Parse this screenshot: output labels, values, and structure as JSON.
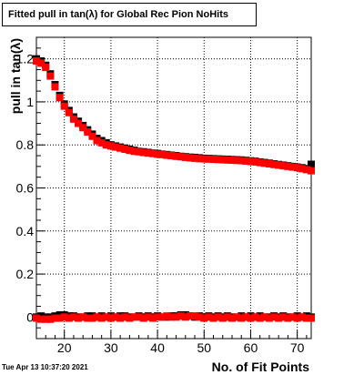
{
  "timestamp": "Tue Apr 13 10:37:20 2021",
  "chart_data": {
    "type": "scatter",
    "title": "Fitted pull in tan(λ) for Global Rec Pion NoHits",
    "xlabel": "No. of Fit Points",
    "ylabel": "pull in tan(λ)",
    "xlim": [
      14,
      73
    ],
    "ylim": [
      -0.1,
      1.3
    ],
    "xticks": [
      20,
      30,
      40,
      50,
      60,
      70
    ],
    "yticks": [
      0,
      0.2,
      0.4,
      0.6,
      0.8,
      1,
      1.2
    ],
    "ytick_labels": [
      "0",
      "0.2",
      "0.4",
      "0.6",
      "0.8",
      "1",
      "1.2"
    ],
    "xtick_labels": [
      "20",
      "30",
      "40",
      "50",
      "60",
      "70"
    ],
    "grid": true,
    "series": [
      {
        "color": "#000000",
        "x": [
          14,
          15,
          16,
          17,
          18,
          19,
          20,
          21,
          22,
          23,
          24,
          25,
          26,
          27,
          28,
          29,
          30,
          31,
          32,
          33,
          34,
          35,
          36,
          37,
          38,
          39,
          40,
          41,
          42,
          43,
          44,
          45,
          46,
          47,
          48,
          49,
          50,
          51,
          52,
          53,
          54,
          55,
          56,
          57,
          58,
          59,
          60,
          61,
          62,
          63,
          64,
          65,
          66,
          67,
          68,
          69,
          70,
          71,
          72,
          73
        ],
        "y": [
          1.2,
          1.19,
          1.17,
          1.13,
          1.08,
          1.03,
          0.99,
          0.96,
          0.93,
          0.91,
          0.89,
          0.87,
          0.85,
          0.83,
          0.82,
          0.81,
          0.8,
          0.795,
          0.79,
          0.785,
          0.78,
          0.775,
          0.77,
          0.768,
          0.765,
          0.762,
          0.76,
          0.757,
          0.755,
          0.752,
          0.75,
          0.747,
          0.745,
          0.743,
          0.742,
          0.74,
          0.738,
          0.737,
          0.736,
          0.735,
          0.734,
          0.733,
          0.732,
          0.731,
          0.73,
          0.728,
          0.726,
          0.724,
          0.721,
          0.718,
          0.715,
          0.712,
          0.709,
          0.706,
          0.703,
          0.7,
          0.697,
          0.694,
          0.69,
          0.71
        ]
      },
      {
        "color": "#ff0000",
        "x": [
          14,
          15,
          16,
          17,
          18,
          19,
          20,
          21,
          22,
          23,
          24,
          25,
          26,
          27,
          28,
          29,
          30,
          31,
          32,
          33,
          34,
          35,
          36,
          37,
          38,
          39,
          40,
          41,
          42,
          43,
          44,
          45,
          46,
          47,
          48,
          49,
          50,
          51,
          52,
          53,
          54,
          55,
          56,
          57,
          58,
          59,
          60,
          61,
          62,
          63,
          64,
          65,
          66,
          67,
          68,
          69,
          70,
          71,
          72,
          73
        ],
        "y": [
          1.19,
          1.18,
          1.16,
          1.12,
          1.07,
          1.02,
          0.98,
          0.95,
          0.92,
          0.9,
          0.88,
          0.86,
          0.84,
          0.82,
          0.81,
          0.8,
          0.795,
          0.79,
          0.785,
          0.78,
          0.775,
          0.77,
          0.768,
          0.765,
          0.762,
          0.76,
          0.757,
          0.755,
          0.752,
          0.75,
          0.747,
          0.745,
          0.742,
          0.74,
          0.738,
          0.736,
          0.735,
          0.734,
          0.733,
          0.732,
          0.731,
          0.73,
          0.729,
          0.728,
          0.727,
          0.725,
          0.723,
          0.721,
          0.718,
          0.715,
          0.712,
          0.709,
          0.706,
          0.703,
          0.7,
          0.697,
          0.694,
          0.69,
          0.685,
          0.68
        ]
      },
      {
        "color": "#000000",
        "x": [
          14,
          15,
          16,
          17,
          18,
          19,
          20,
          21,
          22,
          23,
          24,
          25,
          26,
          27,
          28,
          29,
          30,
          31,
          32,
          33,
          34,
          35,
          36,
          37,
          38,
          39,
          40,
          41,
          42,
          43,
          44,
          45,
          46,
          47,
          48,
          49,
          50,
          51,
          52,
          53,
          54,
          55,
          56,
          57,
          58,
          59,
          60,
          61,
          62,
          63,
          64,
          65,
          66,
          67,
          68,
          69,
          70,
          71,
          72,
          73
        ],
        "y": [
          0.0,
          0.005,
          0.0,
          0.0,
          0.005,
          0.01,
          0.01,
          0.005,
          0.005,
          0.0,
          0.0,
          0.005,
          0.005,
          0.0,
          0.005,
          0.0,
          0.005,
          0.0,
          0.005,
          0.005,
          0.0,
          0.0,
          0.005,
          0.0,
          0.005,
          0.0,
          0.005,
          0.0,
          0.0,
          0.005,
          0.005,
          0.01,
          0.01,
          0.005,
          0.0,
          0.005,
          0.0,
          0.005,
          0.0,
          0.005,
          0.0,
          0.005,
          0.0,
          0.0,
          0.005,
          0.0,
          0.005,
          0.0,
          0.005,
          0.0,
          0.0,
          0.005,
          0.0,
          0.005,
          0.0,
          0.0,
          0.005,
          0.0,
          0.005,
          0.0
        ]
      },
      {
        "color": "#ff0000",
        "x": [
          14,
          15,
          16,
          17,
          18,
          19,
          20,
          21,
          22,
          23,
          24,
          25,
          26,
          27,
          28,
          29,
          30,
          31,
          32,
          33,
          34,
          35,
          36,
          37,
          38,
          39,
          40,
          41,
          42,
          43,
          44,
          45,
          46,
          47,
          48,
          49,
          50,
          51,
          52,
          53,
          54,
          55,
          56,
          57,
          58,
          59,
          60,
          61,
          62,
          63,
          64,
          65,
          66,
          67,
          68,
          69,
          70,
          71,
          72,
          73
        ],
        "y": [
          -0.005,
          -0.01,
          -0.01,
          -0.01,
          -0.005,
          -0.005,
          0.0,
          -0.005,
          0.0,
          -0.005,
          0.0,
          -0.005,
          -0.005,
          0.0,
          -0.005,
          0.0,
          -0.005,
          0.0,
          -0.005,
          0.0,
          -0.005,
          0.0,
          0.0,
          -0.005,
          0.0,
          -0.005,
          0.0,
          0.0,
          0.005,
          0.0,
          0.0,
          0.005,
          0.0,
          0.005,
          0.005,
          0.0,
          -0.005,
          0.0,
          -0.005,
          0.0,
          -0.005,
          0.0,
          -0.005,
          0.0,
          -0.005,
          0.0,
          -0.005,
          0.0,
          -0.005,
          0.0,
          -0.005,
          0.0,
          -0.005,
          0.0,
          -0.005,
          0.0,
          -0.005,
          0.0,
          -0.005,
          -0.005
        ]
      }
    ]
  }
}
